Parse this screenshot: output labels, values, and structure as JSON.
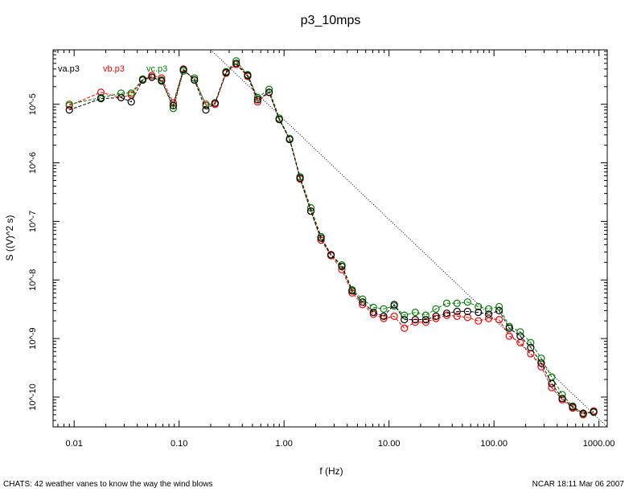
{
  "chart_data": {
    "type": "scatter",
    "title": "p3_10mps",
    "xlabel": "f (Hz)",
    "ylabel": "S ((V)^2 s)",
    "x_scale": "log",
    "y_scale": "log",
    "xlim": [
      0.0063,
      1200
    ],
    "ylim": [
      3.1e-11,
      8.5e-05
    ],
    "x_ticks": [
      {
        "value": 0.01,
        "label": "0.01"
      },
      {
        "value": 0.1,
        "label": "0.10"
      },
      {
        "value": 1,
        "label": "1.00"
      },
      {
        "value": 10,
        "label": "10.00"
      },
      {
        "value": 100,
        "label": "100.00"
      },
      {
        "value": 1000,
        "label": "1000.00"
      }
    ],
    "y_ticks": [
      {
        "value": 1e-05,
        "label": "10^-5"
      },
      {
        "value": 1e-06,
        "label": "10^-6"
      },
      {
        "value": 1e-07,
        "label": "10^-7"
      },
      {
        "value": 1e-08,
        "label": "10^-8"
      },
      {
        "value": 1e-09,
        "label": "10^-9"
      },
      {
        "value": 1e-10,
        "label": "10^-10"
      }
    ],
    "legend_position": "top-left",
    "x": [
      0.009,
      0.018,
      0.028,
      0.035,
      0.045,
      0.055,
      0.068,
      0.088,
      0.11,
      0.14,
      0.18,
      0.22,
      0.28,
      0.35,
      0.45,
      0.56,
      0.72,
      0.9,
      1.13,
      1.42,
      1.8,
      2.25,
      2.8,
      3.55,
      4.45,
      5.6,
      7.1,
      8.9,
      11.2,
      14,
      17.8,
      22.4,
      28,
      35.5,
      44.5,
      56,
      71,
      89,
      112,
      140,
      178,
      224,
      282,
      355,
      447,
      562,
      708,
      891
    ],
    "series": [
      {
        "name": "va.p3",
        "color": "#000000",
        "values": [
          8e-06,
          1.25e-05,
          1.3e-05,
          1.1e-05,
          2.6e-05,
          2.9e-05,
          2.5e-05,
          9.5e-06,
          3.9e-05,
          2.6e-05,
          8e-06,
          1.05e-05,
          3.5e-05,
          5e-05,
          3.1e-05,
          1.2e-05,
          1.6e-05,
          5.5e-06,
          2.5e-06,
          5.5e-07,
          1.5e-07,
          5.2e-08,
          2.7e-08,
          1.7e-08,
          6.5e-09,
          4.2e-09,
          2.8e-09,
          2.4e-09,
          3.8e-09,
          2.1e-09,
          2.1e-09,
          2.1e-09,
          2.4e-09,
          2.7e-09,
          2.9e-09,
          2.9e-09,
          2.8e-09,
          2.6e-09,
          3e-09,
          1.5e-09,
          1.1e-09,
          7e-10,
          3.8e-10,
          1.7e-10,
          9.5e-11,
          6.8e-11,
          5.3e-11,
          5.6e-11
        ]
      },
      {
        "name": "vb.p3",
        "color": "#ff0000",
        "values": [
          9.5e-06,
          1.6e-05,
          1.3e-05,
          1.45e-05,
          2.6e-05,
          3.1e-05,
          2.8e-05,
          1.05e-05,
          4e-05,
          2.6e-05,
          1e-05,
          1e-05,
          3.4e-05,
          4.8e-05,
          3e-05,
          1.1e-05,
          1.6e-05,
          5.5e-06,
          2.6e-06,
          5.3e-07,
          1.5e-07,
          4.8e-08,
          2.6e-08,
          1.5e-08,
          6e-09,
          3.8e-09,
          2.6e-09,
          2.2e-09,
          2.4e-09,
          1.5e-09,
          1.9e-09,
          1.9e-09,
          2.2e-09,
          2.5e-09,
          2.4e-09,
          2.3e-09,
          2e-09,
          2.2e-09,
          2.1e-09,
          1.1e-09,
          8.5e-10,
          5.5e-10,
          3.3e-10,
          1.45e-10,
          9e-11,
          6.5e-11,
          5e-11,
          5.8e-11
        ]
      },
      {
        "name": "vc.p3",
        "color": "#008000",
        "values": [
          1e-05,
          1.3e-05,
          1.55e-05,
          1.55e-05,
          2.7e-05,
          2.9e-05,
          2.6e-05,
          8.5e-06,
          3.7e-05,
          2.8e-05,
          9.5e-06,
          1.05e-05,
          3.6e-05,
          5.5e-05,
          3.2e-05,
          1.3e-05,
          1.8e-05,
          5.8e-06,
          2.6e-06,
          5.8e-07,
          1.7e-07,
          5.5e-08,
          2.7e-08,
          1.8e-08,
          6.8e-09,
          4.7e-09,
          3.4e-09,
          3.2e-09,
          3.6e-09,
          2.5e-09,
          2.8e-09,
          2.5e-09,
          3.2e-09,
          4e-09,
          4e-09,
          4.2e-09,
          3.5e-09,
          3.2e-09,
          3.5e-09,
          1.6e-09,
          1.3e-09,
          8.5e-10,
          4.6e-10,
          2.2e-10,
          1.1e-10,
          7e-11,
          5.2e-11,
          5.5e-11
        ]
      }
    ],
    "reference_line": {
      "style": "dotted",
      "color": "#000000",
      "x": [
        0.2,
        1200
      ],
      "y": [
        8.5e-05,
        3.1e-11
      ]
    }
  },
  "footer": {
    "left": "CHATS: 42 weather vanes to know the way the wind blows",
    "right": "NCAR 18:11 Mar 06 2007"
  }
}
